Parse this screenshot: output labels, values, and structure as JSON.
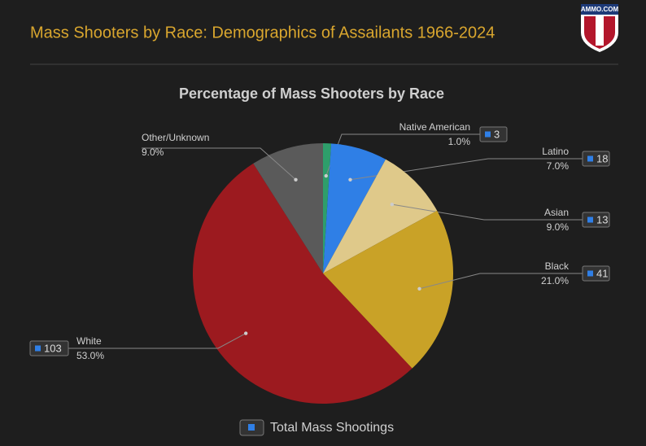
{
  "header": {
    "title": "Mass Shooters by Race: Demographics of Assailants 1966-2024",
    "logo": "AMMO.COM"
  },
  "chart_data": {
    "type": "pie",
    "title": "Percentage of Mass Shooters by Race",
    "categories": [
      "Native American",
      "Latino",
      "Asian",
      "Black",
      "White",
      "Other/Unknown"
    ],
    "values": [
      1,
      7,
      9,
      21,
      53,
      9
    ],
    "value_labels": [
      "1.0%",
      "7.0%",
      "9.0%",
      "21.0%",
      "53.0%",
      "9.0%"
    ],
    "colors": [
      "#2e9e6b",
      "#2f7fe6",
      "#dfc98a",
      "#c9a227",
      "#9c1a1f",
      "#5a5a5a"
    ],
    "series": [
      {
        "name": "Total Mass Shootings",
        "color": "#2f7fe6",
        "values": [
          3,
          18,
          13,
          41,
          103,
          null
        ]
      }
    ]
  }
}
